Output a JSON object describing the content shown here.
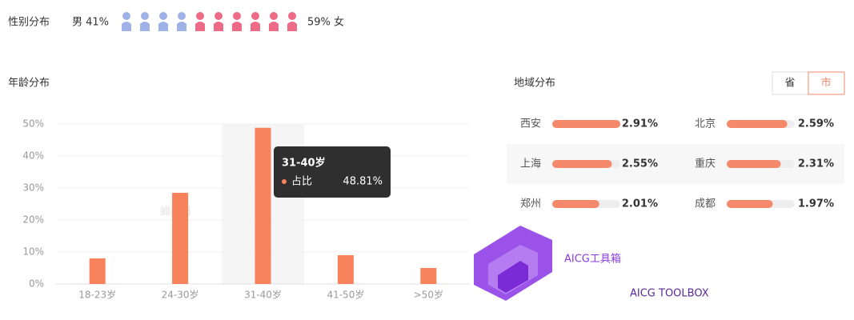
{
  "gender": {
    "title": "性别分布",
    "male_label": "男 41%",
    "female_label": "59% 女"
  },
  "chart_data": {
    "type": "bar",
    "title": "年龄分布",
    "categories": [
      "18-23岁",
      "24-30岁",
      "31-40岁",
      "41-50岁",
      ">50岁"
    ],
    "values": [
      8,
      28.5,
      48.81,
      9,
      5
    ],
    "color": "#f7825c",
    "ylim": [
      0,
      50
    ],
    "yticks": [
      {
        "value": 0,
        "label": "0%"
      },
      {
        "value": 10,
        "label": "10%"
      },
      {
        "value": 20,
        "label": "20%"
      },
      {
        "value": 30,
        "label": "30%"
      },
      {
        "value": 40,
        "label": "40%"
      },
      {
        "value": 50,
        "label": "50%"
      }
    ],
    "grid": true,
    "tooltip": {
      "title": "31-40岁",
      "label": "占比",
      "value_label": "48.81%"
    }
  },
  "region": {
    "title": "地域分布",
    "tabs": [
      "省",
      "市"
    ],
    "color": "#f4896b",
    "items": [
      {
        "name": "西安",
        "value": 2.91,
        "value_label": "2.91%"
      },
      {
        "name": "北京",
        "value": 2.59,
        "value_label": "2.59%"
      },
      {
        "name": "上海",
        "value": 2.55,
        "value_label": "2.55%"
      },
      {
        "name": "重庆",
        "value": 2.31,
        "value_label": "2.31%"
      },
      {
        "name": "郑州",
        "value": 2.01,
        "value_label": "2.01%"
      },
      {
        "name": "成都",
        "value": 1.97,
        "value_label": "1.97%"
      }
    ]
  },
  "watermarks": {
    "source": "蝉妈妈",
    "brand": "AICG工具箱",
    "brand_sub": "AICG TOOLBOX"
  }
}
